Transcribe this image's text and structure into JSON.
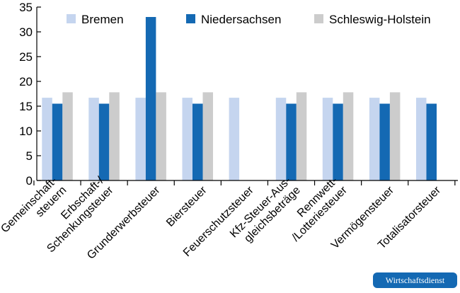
{
  "chart_data": {
    "type": "bar",
    "categories": [
      [
        "Gemeinschaft-",
        "steuern"
      ],
      [
        "Erbschaft-/",
        "Schenkungsteuer"
      ],
      [
        "Grunderwerbsteuer"
      ],
      [
        "Biersteuer"
      ],
      [
        "Feuerschutzsteuer"
      ],
      [
        "Kfz-Steuer-Aus-",
        "gleichsbeträge"
      ],
      [
        "Rennwett-",
        "/Lotteriesteuer"
      ],
      [
        "Vermögensteuer"
      ],
      [
        "Totalisatorsteuer"
      ]
    ],
    "series": [
      {
        "name": "Bremen",
        "color": "#c5d5ef",
        "values": [
          16.7,
          16.7,
          16.7,
          16.7,
          16.7,
          16.7,
          16.7,
          16.7,
          16.7
        ]
      },
      {
        "name": "Niedersachsen",
        "color": "#1469b3",
        "values": [
          15.5,
          15.5,
          33.0,
          15.5,
          null,
          15.5,
          15.5,
          15.5,
          15.5
        ]
      },
      {
        "name": "Schleswig-Holstein",
        "color": "#cccccc",
        "values": [
          17.8,
          17.8,
          17.8,
          17.8,
          null,
          17.8,
          17.8,
          17.8,
          null
        ]
      }
    ],
    "ylim": [
      0,
      35
    ],
    "yticks": [
      0,
      5,
      10,
      15,
      20,
      25,
      30,
      35
    ],
    "grid": false,
    "legend_position": "top"
  },
  "badge": "Wirtschaftsdienst"
}
